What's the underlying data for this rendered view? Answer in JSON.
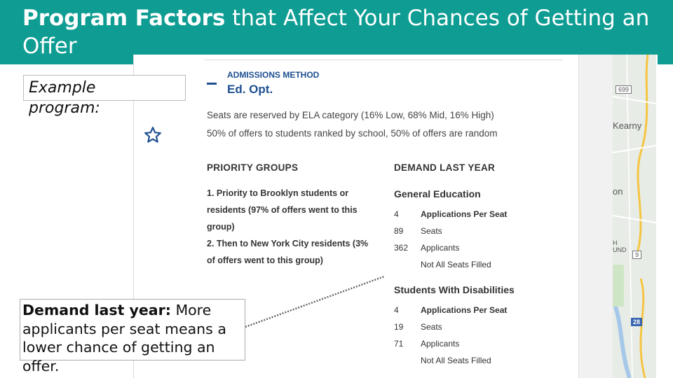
{
  "slide": {
    "title_bold": "Program Factors",
    "title_rest": " that Affect Your Chances of Getting an Offer"
  },
  "example_label": "Example program:",
  "callout": {
    "bold": "Demand last year:",
    "rest": " More applicants per seat means a lower chance of getting an offer."
  },
  "program": {
    "favorite_icon": "star-outline-icon",
    "admissions_method_label": "ADMISSIONS METHOD",
    "admissions_method_value": "Ed. Opt.",
    "seat_note": "Seats are reserved by ELA category (16% Low, 68% Mid, 16% High)",
    "offer_note": "50% of offers to students ranked by school, 50% of offers are random",
    "priority_groups": {
      "heading": "PRIORITY GROUPS",
      "items": [
        "1. Priority to Brooklyn students or residents (97% of offers went to this group)",
        "2. Then to New York City residents (3% of offers went to this group)"
      ]
    },
    "demand": {
      "heading": "DEMAND LAST YEAR",
      "groups": [
        {
          "name": "General Education",
          "rows": [
            {
              "num": "4",
              "label": "Applications Per Seat"
            },
            {
              "num": "89",
              "label": "Seats"
            },
            {
              "num": "362",
              "label": "Applicants"
            }
          ],
          "status": "Not All Seats Filled"
        },
        {
          "name": "Students With Disabilities",
          "rows": [
            {
              "num": "4",
              "label": "Applications Per Seat"
            },
            {
              "num": "19",
              "label": "Seats"
            },
            {
              "num": "71",
              "label": "Applicants"
            }
          ],
          "status": "Not All Seats Filled"
        }
      ]
    }
  },
  "map": {
    "labels": [
      "Kearny",
      "on",
      "H",
      "UND"
    ],
    "badges": [
      "699",
      "9",
      "28"
    ]
  },
  "colors": {
    "header": "#0f9d93",
    "program_blue": "#1d4f91"
  }
}
